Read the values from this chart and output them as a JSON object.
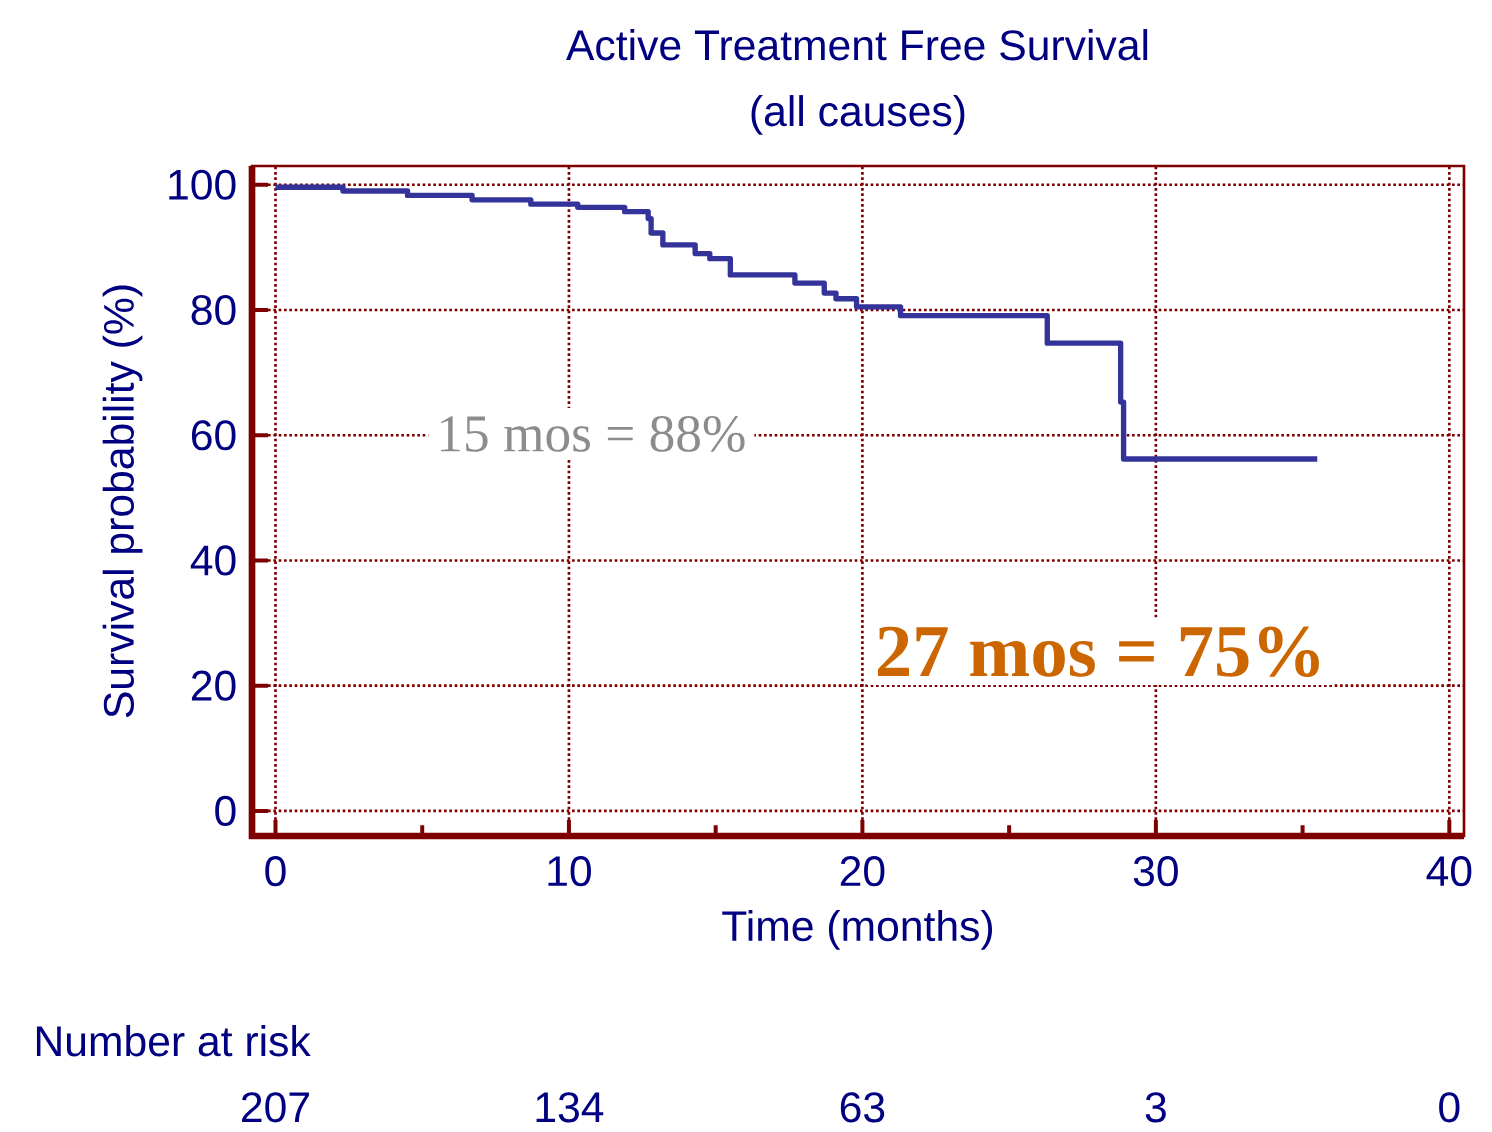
{
  "chart_data": {
    "type": "step",
    "title": "Active Treatment Free Survival",
    "subtitle": "(all causes)",
    "xlabel": "Time (months)",
    "ylabel": "Survival probability (%)",
    "x": [
      0,
      2.3,
      4.5,
      6.7,
      8.7,
      10.3,
      11.9,
      12.7,
      12.8,
      13.2,
      14.3,
      14.8,
      15.5,
      17.7,
      18.7,
      19.1,
      19.8,
      21.3,
      26.3,
      28.8,
      28.9,
      35.5
    ],
    "series": [
      {
        "color": "#333399",
        "values": [
          99.6,
          99,
          98.3,
          97.6,
          96.9,
          96.4,
          95.7,
          94.6,
          92.3,
          90.4,
          89,
          88.2,
          85.6,
          84.3,
          82.7,
          81.8,
          80.5,
          79.1,
          74.7,
          65.3,
          56.2,
          56.2
        ]
      }
    ],
    "xlim": [
      -0.8,
      40.5
    ],
    "ylim": [
      -4,
      103
    ],
    "xticks": [
      0,
      10,
      20,
      30,
      40
    ],
    "yticks": [
      0,
      20,
      40,
      60,
      80,
      100
    ],
    "grid": true,
    "marker": "none",
    "line_style": "solid",
    "annotations": [
      "15 mos = 88%",
      "27 mos = 75%",
      "Number at risk",
      "207",
      "134",
      "63",
      "3",
      "0"
    ]
  }
}
